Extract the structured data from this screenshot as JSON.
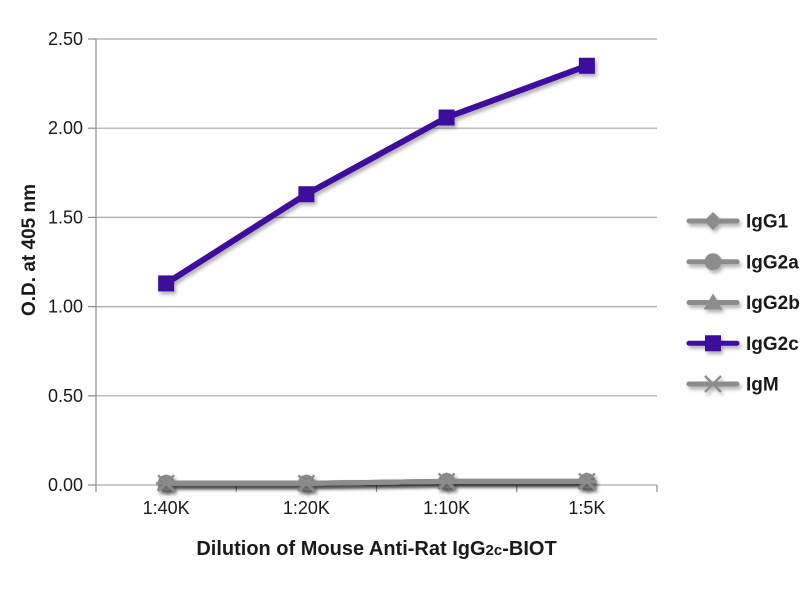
{
  "figure": {
    "background": "#ffffff",
    "text_color": "#1a1a1a",
    "gridline_color": "#a8a8a8",
    "axis_color": "#8c8c8c"
  },
  "chart_data": {
    "type": "line",
    "title": "",
    "xlabel": "Dilution of Mouse Anti-Rat IgG2c-BIOT",
    "xlabel_parts": {
      "prefix": "Dilution of Mouse Anti-Rat IgG",
      "sub": "2c",
      "suffix": "-BIOT"
    },
    "ylabel": "O.D. at 405 nm",
    "categories": [
      "1:40K",
      "1:20K",
      "1:10K",
      "1:5K"
    ],
    "ylim": [
      0,
      2.5
    ],
    "ytick_step": 0.5,
    "ytick_labels": [
      "0.00",
      "0.50",
      "1.00",
      "1.50",
      "2.00",
      "2.50"
    ],
    "grid": "horizontal",
    "legend_position": "right",
    "series": [
      {
        "name": "IgG1",
        "marker": "diamond",
        "color": "#8c8c8c",
        "values": [
          0.01,
          0.01,
          0.02,
          0.02
        ]
      },
      {
        "name": "IgG2a",
        "marker": "circle",
        "color": "#8c8c8c",
        "values": [
          0.01,
          0.01,
          0.02,
          0.02
        ]
      },
      {
        "name": "IgG2b",
        "marker": "triangle",
        "color": "#8c8c8c",
        "values": [
          0.01,
          0.01,
          0.02,
          0.02
        ]
      },
      {
        "name": "IgG2c",
        "marker": "square",
        "color": "#3d0c9e",
        "values": [
          1.13,
          1.63,
          2.06,
          2.35
        ]
      },
      {
        "name": "IgM",
        "marker": "star",
        "color": "#8c8c8c",
        "values": [
          0.01,
          0.01,
          0.02,
          0.02
        ]
      }
    ]
  }
}
